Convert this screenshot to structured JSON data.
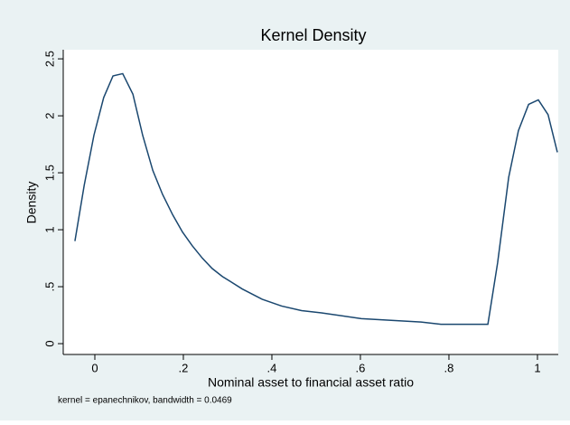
{
  "chart_data": {
    "type": "line",
    "title": "Kernel Density",
    "xlabel": "Nominal asset to financial asset ratio",
    "ylabel": "Density",
    "note": "kernel = epanechnikov, bandwidth = 0.0469",
    "series": [
      {
        "name": "Density",
        "color": "#1a476f",
        "x": [
          -0.045,
          -0.024,
          -0.002,
          0.02,
          0.041,
          0.063,
          0.086,
          0.108,
          0.131,
          0.153,
          0.176,
          0.198,
          0.22,
          0.243,
          0.265,
          0.288,
          0.333,
          0.378,
          0.422,
          0.467,
          0.512,
          0.602,
          0.692,
          0.737,
          0.782,
          0.827,
          0.888,
          0.91,
          0.935,
          0.957,
          0.98,
          1.002,
          1.024,
          1.045
        ],
        "values": [
          0.9,
          1.39,
          1.83,
          2.16,
          2.35,
          2.37,
          2.19,
          1.83,
          1.52,
          1.31,
          1.13,
          0.98,
          0.86,
          0.75,
          0.66,
          0.59,
          0.48,
          0.39,
          0.33,
          0.29,
          0.27,
          0.22,
          0.2,
          0.19,
          0.17,
          0.17,
          0.17,
          0.71,
          1.46,
          1.87,
          2.1,
          2.14,
          2.01,
          1.68
        ]
      }
    ],
    "xlim": [
      -0.0714,
      1.047
    ],
    "ylim": [
      -0.095,
      2.58
    ],
    "xticks": [
      0,
      {
        "value": 0.2,
        "label": ".2"
      },
      {
        "value": 0.4,
        "label": ".4"
      },
      {
        "value": 0.6,
        "label": ".6"
      },
      {
        "value": 0.8,
        "label": ".8"
      },
      1
    ],
    "yticks": [
      0,
      {
        "value": 0.5,
        "label": ".5"
      },
      1,
      {
        "value": 1.5,
        "label": "1.5"
      },
      2,
      {
        "value": 2.5,
        "label": "2.5"
      }
    ],
    "grid": false
  }
}
